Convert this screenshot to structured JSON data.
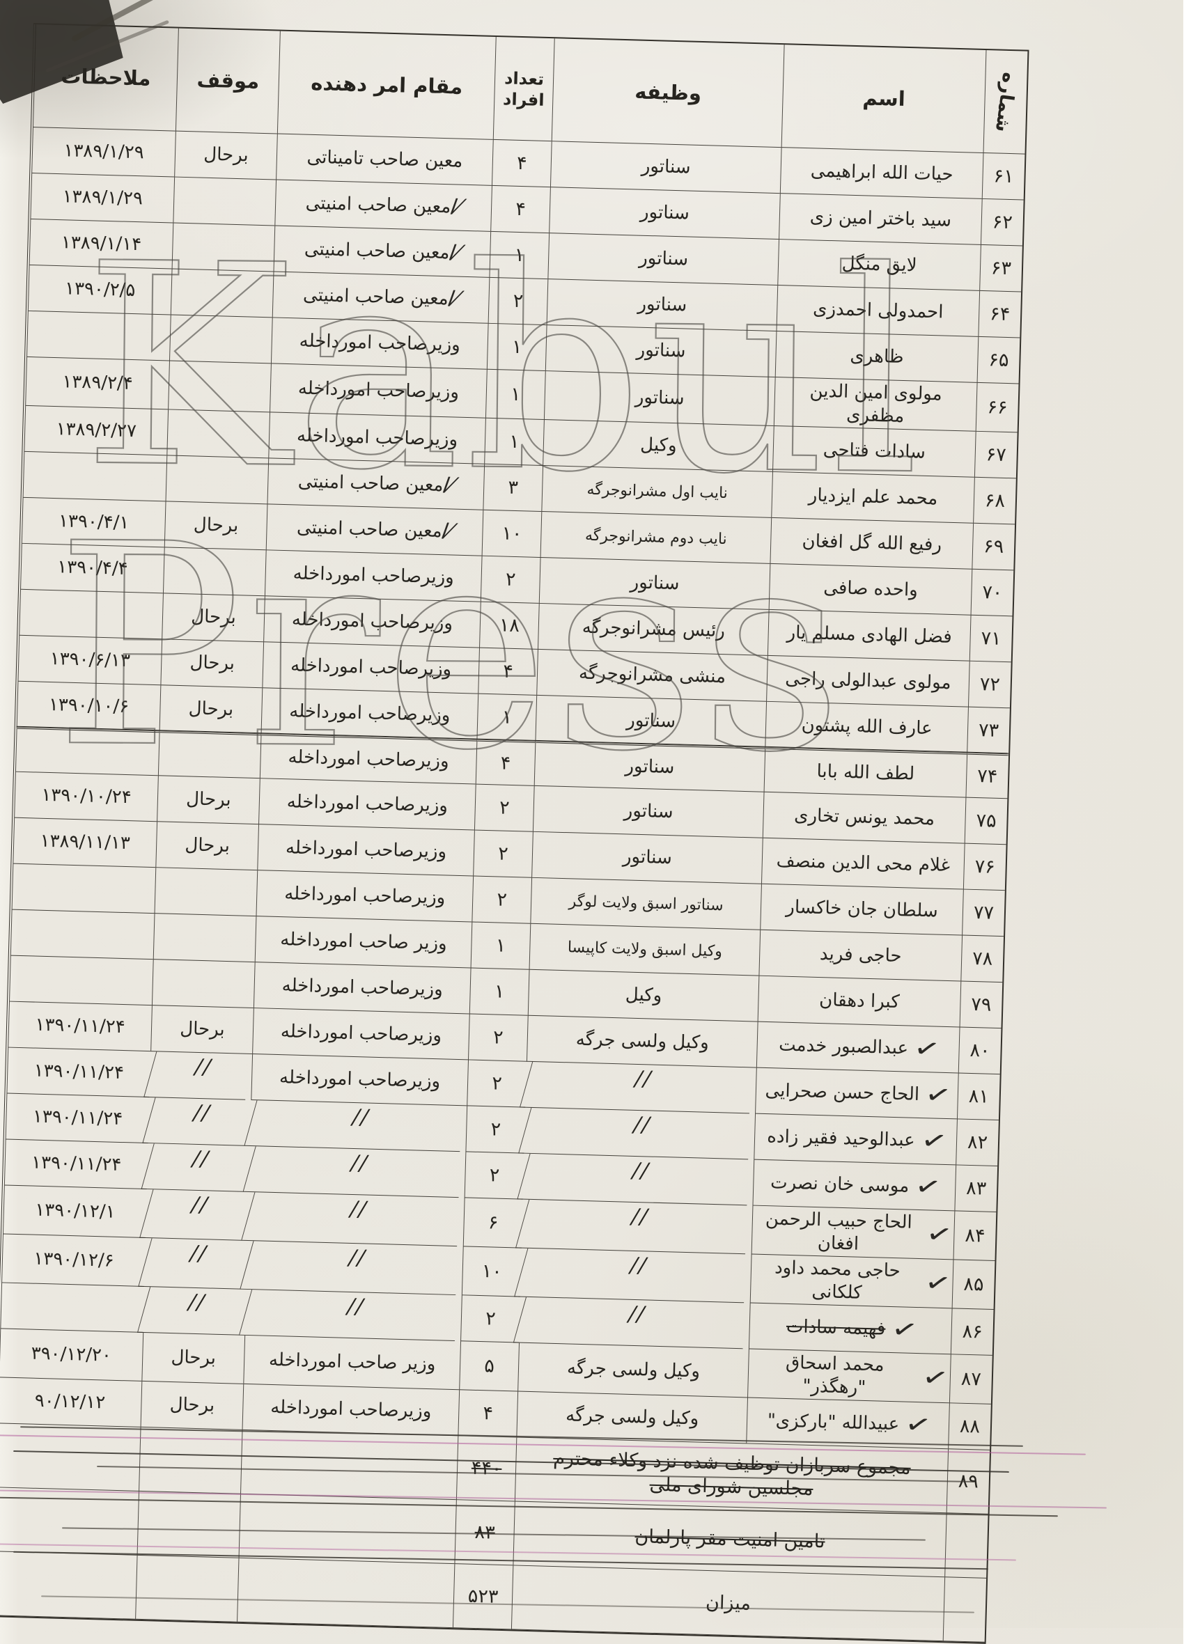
{
  "document": {
    "watermark": {
      "line1": "Kabul",
      "line2": "Press"
    },
    "columns": {
      "number": "شماره",
      "name": "اسم",
      "duty": "وظیفه",
      "count": "تعداد افراد",
      "authority": "مقام امر دهنده",
      "status": "موقف",
      "remarks": "ملاحظات"
    },
    "rows": [
      {
        "num": "۶۱",
        "name": "حیات الله ابراهیمی",
        "check": false,
        "duty": "سناتور",
        "count": "۴",
        "auth": "معین صاحب تامیناتی",
        "auth_mark": false,
        "status": "برحال",
        "remark": "۱۳۸۹/۱/۲۹"
      },
      {
        "num": "۶۲",
        "name": "سید باختر امین زی",
        "check": false,
        "duty": "سناتور",
        "count": "۴",
        "auth": "معین صاحب امنیتی",
        "auth_mark": true,
        "status": "",
        "remark": "۱۳۸۹/۱/۲۹"
      },
      {
        "num": "۶۳",
        "name": "لایق منگل",
        "check": false,
        "duty": "سناتور",
        "count": "۱",
        "auth": "معین صاحب امنیتی",
        "auth_mark": true,
        "status": "",
        "remark": "۱۳۸۹/۱/۱۴"
      },
      {
        "num": "۶۴",
        "name": "احمدولی احمدزی",
        "check": false,
        "duty": "سناتور",
        "count": "۲",
        "auth": "معین صاحب امنیتی",
        "auth_mark": true,
        "status": "",
        "remark": "۱۳۹۰/۲/۵"
      },
      {
        "num": "۶۵",
        "name": "ظاهری",
        "check": false,
        "duty": "سناتور",
        "count": "۱",
        "auth": "وزیرصاحب امورداخله",
        "auth_mark": false,
        "status": "",
        "remark": ""
      },
      {
        "num": "۶۶",
        "name": "مولوی امین الدین مظفری",
        "check": false,
        "duty": "سناتور",
        "count": "۱",
        "auth": "وزیرصاحب امورداخله",
        "auth_mark": false,
        "status": "",
        "remark": "۱۳۸۹/۲/۴"
      },
      {
        "num": "۶۷",
        "name": "سادات فتاحی",
        "check": false,
        "duty": "وکیل",
        "count": "۱",
        "auth": "وزیرصاحب امورداخله",
        "auth_mark": false,
        "status": "",
        "remark": "۱۳۸۹/۲/۲۷"
      },
      {
        "num": "۶۸",
        "name": "محمد علم ایزدیار",
        "check": false,
        "duty": "نایب اول مشرانوجرگه",
        "count": "۳",
        "auth": "معین صاحب امنیتی",
        "auth_mark": true,
        "status": "",
        "remark": ""
      },
      {
        "num": "۶۹",
        "name": "رفیع الله گل افغان",
        "check": false,
        "duty": "نایب دوم مشرانوجرگه",
        "count": "۱۰",
        "auth": "معین صاحب امنیتی",
        "auth_mark": true,
        "status": "برحال",
        "remark": "۱۳۹۰/۴/۱"
      },
      {
        "num": "۷۰",
        "name": "واحده صافی",
        "check": false,
        "duty": "سناتور",
        "count": "۲",
        "auth": "وزیرصاحب امورداخله",
        "auth_mark": false,
        "status": "",
        "remark": "۱۳۹۰/۴/۴"
      },
      {
        "num": "۷۱",
        "name": "فضل الهادی مسلم یار",
        "check": false,
        "duty": "رئیس مشرانوجرگه",
        "count": "۱۸",
        "auth": "وزیرصاحب امورداخله",
        "auth_mark": false,
        "status": "برحال",
        "remark": ""
      },
      {
        "num": "۷۲",
        "name": "مولوی عبدالولی راجی",
        "check": false,
        "duty": "منشی مشرانوجرگه",
        "count": "۴",
        "auth": "وزیرصاحب امورداخله",
        "auth_mark": false,
        "status": "برحال",
        "remark": "۱۳۹۰/۶/۱۳"
      },
      {
        "num": "۷۳",
        "name": "عارف الله پشتون",
        "check": false,
        "duty": "سناتور",
        "count": "۱",
        "auth": "وزیرصاحب امورداخله",
        "auth_mark": false,
        "status": "برحال",
        "remark": "۱۳۹۰/۱۰/۶"
      },
      {
        "num": "۷۴",
        "name": "لطف الله بابا",
        "check": false,
        "duty": "سناتور",
        "count": "۴",
        "auth": "وزیرصاحب امورداخله",
        "auth_mark": false,
        "status": "",
        "remark": "",
        "double_top": true
      },
      {
        "num": "۷۵",
        "name": "محمد یونس تخاری",
        "check": false,
        "duty": "سناتور",
        "count": "۲",
        "auth": "وزیرصاحب امورداخله",
        "auth_mark": false,
        "status": "برحال",
        "remark": "۱۳۹۰/۱۰/۲۴"
      },
      {
        "num": "۷۶",
        "name": "غلام محی الدین منصف",
        "check": false,
        "duty": "سناتور",
        "count": "۲",
        "auth": "وزیرصاحب امورداخله",
        "auth_mark": false,
        "status": "برحال",
        "remark": "۱۳۸۹/۱۱/۱۳"
      },
      {
        "num": "۷۷",
        "name": "سلطان جان خاکسار",
        "check": false,
        "duty": "سناتور اسبق ولایت لوگر",
        "count": "۲",
        "auth": "وزیرصاحب امورداخله",
        "auth_mark": false,
        "status": "",
        "remark": ""
      },
      {
        "num": "۷۸",
        "name": "حاجی فرید",
        "check": false,
        "duty": "وکیل اسبق ولایت کاپیسا",
        "count": "۱",
        "auth": "وزیر صاحب امورداخله",
        "auth_mark": false,
        "status": "",
        "remark": ""
      },
      {
        "num": "۷۹",
        "name": "کبرا دهقان",
        "check": false,
        "duty": "وکیل",
        "count": "۱",
        "auth": "وزیرصاحب امورداخله",
        "auth_mark": false,
        "status": "",
        "remark": ""
      },
      {
        "num": "۸۰",
        "name": "عبدالصبور خدمت",
        "check": true,
        "duty": "وکیل ولسی جرگه",
        "count": "۲",
        "auth": "وزیرصاحب امورداخله",
        "auth_mark": false,
        "status": "برحال",
        "remark": "۱۳۹۰/۱۱/۲۴"
      },
      {
        "num": "۸۱",
        "name": "الحاج حسن صحرایی",
        "check": true,
        "duty": "//",
        "count": "۲",
        "auth": "وزیرصاحب امورداخله",
        "auth_mark": false,
        "status": "//",
        "remark": "۱۳۹۰/۱۱/۲۴"
      },
      {
        "num": "۸۲",
        "name": "عبدالوحید فقیر زاده",
        "check": true,
        "duty": "//",
        "count": "۲",
        "auth": "//",
        "auth_mark": false,
        "status": "//",
        "remark": "۱۳۹۰/۱۱/۲۴"
      },
      {
        "num": "۸۳",
        "name": "موسی خان نصرت",
        "check": true,
        "duty": "//",
        "count": "۲",
        "auth": "//",
        "auth_mark": false,
        "status": "//",
        "remark": "۱۳۹۰/۱۱/۲۴"
      },
      {
        "num": "۸۴",
        "name": "الحاج حبیب الرحمن افغان",
        "check": true,
        "duty": "//",
        "count": "۶",
        "auth": "//",
        "auth_mark": false,
        "status": "//",
        "remark": "۱۳۹۰/۱۲/۱"
      },
      {
        "num": "۸۵",
        "name": "حاجی محمد داود کلکانی",
        "check": true,
        "duty": "//",
        "count": "۱۰",
        "auth": "//",
        "auth_mark": false,
        "status": "//",
        "remark": "۱۳۹۰/۱۲/۶"
      },
      {
        "num": "۸۶",
        "name": "فهیمه سادات",
        "check": true,
        "struck": true,
        "duty": "//",
        "count": "۲",
        "auth": "//",
        "auth_mark": false,
        "status": "//",
        "remark": ""
      },
      {
        "num": "۸۷",
        "name": "محمد اسحاق \"رهگذر\"",
        "check": true,
        "duty": "وکیل ولسی جرگه",
        "count": "۵",
        "auth": "وزیر صاحب امورداخله",
        "auth_mark": false,
        "status": "برحال",
        "remark": "۳۹۰/۱۲/۲۰"
      },
      {
        "num": "۸۸",
        "name": "عبیدالله \"بارکزی\"",
        "check": true,
        "duty": "وکیل ولسی جرگه",
        "count": "۴",
        "auth": "وزیرصاحب امورداخله",
        "auth_mark": false,
        "status": "برحال",
        "remark": "۹۰/۱۲/۱۲"
      }
    ],
    "summary": [
      {
        "num": "۸۹",
        "label": "مجموع سربازان توظیف شده نزد وکلاء محترم مجلسین شورای ملی",
        "count": "۴۴۰",
        "struck": true
      },
      {
        "num": "",
        "label": "تامین امنیت مقر پارلمان",
        "count": "۸۳",
        "struck": true
      },
      {
        "num": "",
        "label": "میزان",
        "count": "۵۲۳",
        "struck": false
      }
    ]
  }
}
